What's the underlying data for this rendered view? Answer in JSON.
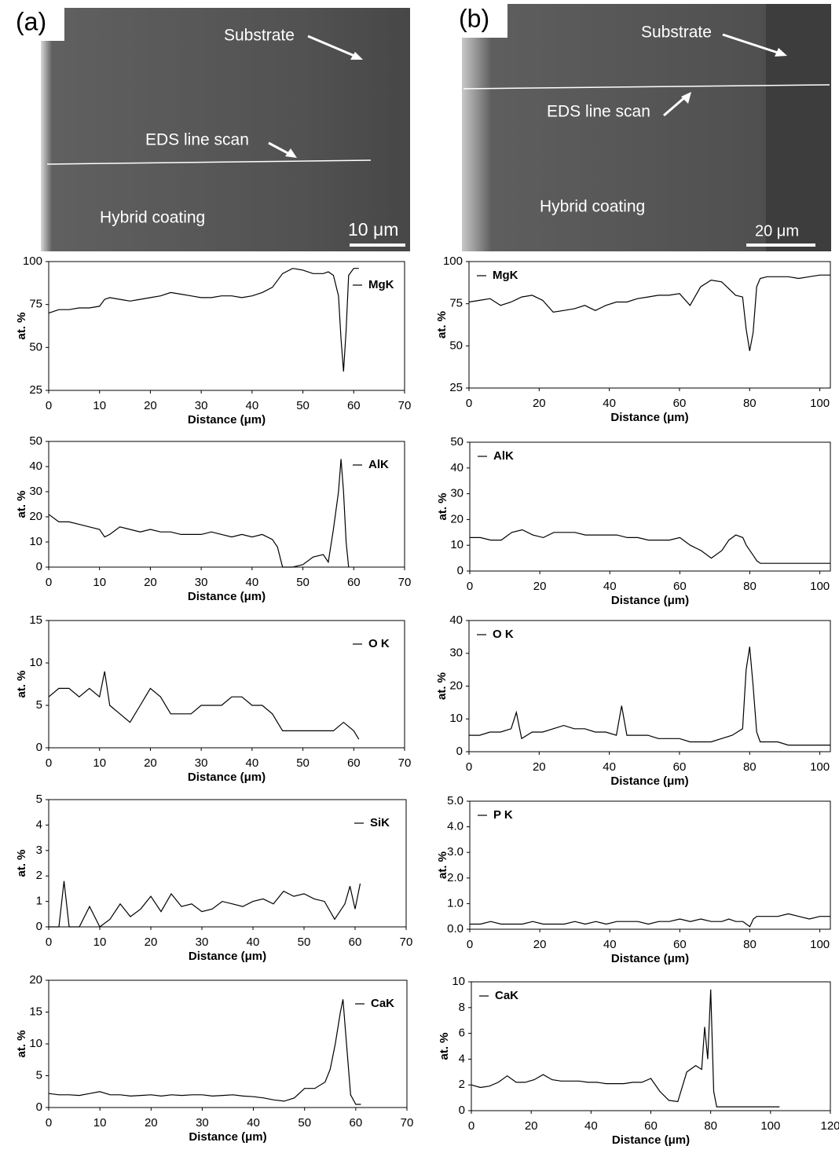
{
  "panels": [
    {
      "label": "(a)",
      "substrate": "Substrate",
      "line_scan": "EDS line scan",
      "coating": "Hybrid coating",
      "scale": "10 μm"
    },
    {
      "label": "(b)",
      "substrate": "Substrate",
      "line_scan": "EDS line scan",
      "coating": "Hybrid coating",
      "scale": "20 μm"
    }
  ],
  "chart_data": [
    {
      "type": "line",
      "xlabel": "Distance (μm)",
      "ylabel": "at. %",
      "legend": "upper right",
      "xlim": [
        0,
        70
      ],
      "xticks": [
        0,
        10,
        20,
        30,
        40,
        50,
        60,
        70
      ],
      "ylim": [
        25,
        100
      ],
      "yticks": [
        25,
        50,
        75,
        100
      ],
      "x": [
        0,
        2,
        4,
        6,
        8,
        10,
        11,
        12,
        14,
        16,
        18,
        20,
        22,
        24,
        26,
        28,
        30,
        32,
        34,
        36,
        38,
        40,
        42,
        44,
        46,
        48,
        50,
        52,
        54,
        55,
        56,
        57,
        57.5,
        58,
        58.5,
        59,
        60,
        61
      ],
      "series": [
        {
          "name": "MgK",
          "color": "#000000",
          "values": [
            70,
            72,
            72,
            73,
            73,
            74,
            78,
            79,
            78,
            77,
            78,
            79,
            80,
            82,
            81,
            80,
            79,
            79,
            80,
            80,
            79,
            80,
            82,
            85,
            93,
            96,
            95,
            93,
            93,
            94,
            92,
            80,
            55,
            36,
            60,
            92,
            96,
            96
          ]
        }
      ]
    },
    {
      "type": "line",
      "xlabel": "Distance (μm)",
      "ylabel": "at. %",
      "legend": "upper left",
      "xlim": [
        0,
        103
      ],
      "xticks": [
        0,
        20,
        40,
        60,
        80,
        100
      ],
      "ylim": [
        25,
        100
      ],
      "yticks": [
        25,
        50,
        75,
        100
      ],
      "x": [
        0,
        3,
        6,
        9,
        12,
        15,
        18,
        21,
        24,
        27,
        30,
        33,
        36,
        39,
        42,
        45,
        48,
        51,
        54,
        57,
        60,
        63,
        66,
        69,
        72,
        74,
        76,
        78,
        79,
        80,
        81,
        82,
        83,
        85,
        88,
        91,
        94,
        97,
        100,
        103
      ],
      "series": [
        {
          "name": "MgK",
          "color": "#000000",
          "values": [
            76,
            77,
            78,
            74,
            76,
            79,
            80,
            77,
            70,
            71,
            72,
            74,
            71,
            74,
            76,
            76,
            78,
            79,
            80,
            80,
            81,
            74,
            85,
            89,
            88,
            84,
            80,
            79,
            60,
            47,
            58,
            85,
            90,
            91,
            91,
            91,
            90,
            91,
            92,
            92
          ]
        }
      ]
    },
    {
      "type": "line",
      "xlabel": "Distance (μm)",
      "ylabel": "at. %",
      "legend": "upper right",
      "xlim": [
        0,
        70
      ],
      "xticks": [
        0,
        10,
        20,
        30,
        40,
        50,
        60,
        70
      ],
      "ylim": [
        0,
        50
      ],
      "yticks": [
        0,
        10,
        20,
        30,
        40,
        50
      ],
      "x": [
        0,
        2,
        4,
        6,
        8,
        10,
        11,
        12,
        14,
        16,
        18,
        20,
        22,
        24,
        26,
        28,
        30,
        32,
        34,
        36,
        38,
        40,
        42,
        44,
        45,
        46,
        48,
        50,
        52,
        54,
        55,
        56,
        57,
        57.5,
        58,
        58.5,
        59
      ],
      "series": [
        {
          "name": "AlK",
          "color": "#000000",
          "values": [
            21,
            18,
            18,
            17,
            16,
            15,
            12,
            13,
            16,
            15,
            14,
            15,
            14,
            14,
            13,
            13,
            13,
            14,
            13,
            12,
            13,
            12,
            13,
            11,
            8,
            0,
            0,
            1,
            4,
            5,
            2,
            15,
            30,
            43,
            30,
            10,
            0
          ]
        }
      ]
    },
    {
      "type": "line",
      "xlabel": "Distance (μm)",
      "ylabel": "at. %",
      "legend": "upper left",
      "xlim": [
        0,
        103
      ],
      "xticks": [
        0,
        20,
        40,
        60,
        80,
        100
      ],
      "ylim": [
        0,
        50
      ],
      "yticks": [
        0,
        10,
        20,
        30,
        40,
        50
      ],
      "x": [
        0,
        3,
        6,
        9,
        12,
        15,
        18,
        21,
        24,
        27,
        30,
        33,
        36,
        39,
        42,
        45,
        48,
        51,
        54,
        57,
        60,
        63,
        66,
        69,
        72,
        74,
        76,
        78,
        79,
        80,
        81,
        82,
        83,
        85,
        88,
        91,
        94,
        97,
        100,
        103
      ],
      "series": [
        {
          "name": "AlK",
          "color": "#000000",
          "values": [
            13,
            13,
            12,
            12,
            15,
            16,
            14,
            13,
            15,
            15,
            15,
            14,
            14,
            14,
            14,
            13,
            13,
            12,
            12,
            12,
            13,
            10,
            8,
            5,
            8,
            12,
            14,
            13,
            10,
            8,
            6,
            4,
            3,
            3,
            3,
            3,
            3,
            3,
            3,
            3
          ]
        }
      ]
    },
    {
      "type": "line",
      "xlabel": "Distance (μm)",
      "ylabel": "at. %",
      "legend": "upper right",
      "xlim": [
        0,
        70
      ],
      "xticks": [
        0,
        10,
        20,
        30,
        40,
        50,
        60,
        70
      ],
      "ylim": [
        0,
        15
      ],
      "yticks": [
        0,
        5,
        10,
        15
      ],
      "x": [
        0,
        2,
        4,
        6,
        8,
        10,
        11,
        12,
        14,
        16,
        18,
        20,
        22,
        24,
        26,
        28,
        30,
        32,
        34,
        36,
        38,
        40,
        42,
        44,
        46,
        48,
        50,
        52,
        54,
        56,
        58,
        60,
        61
      ],
      "series": [
        {
          "name": "O K",
          "color": "#000000",
          "values": [
            6,
            7,
            7,
            6,
            7,
            6,
            9,
            5,
            4,
            3,
            5,
            7,
            6,
            4,
            4,
            4,
            5,
            5,
            5,
            6,
            6,
            5,
            5,
            4,
            2,
            2,
            2,
            2,
            2,
            2,
            3,
            2,
            1
          ]
        }
      ]
    },
    {
      "type": "line",
      "xlabel": "Distance (μm)",
      "ylabel": "at. %",
      "legend": "upper left",
      "xlim": [
        0,
        103
      ],
      "xticks": [
        0,
        20,
        40,
        60,
        80,
        100
      ],
      "ylim": [
        0,
        40
      ],
      "yticks": [
        0,
        10,
        20,
        30,
        40
      ],
      "x": [
        0,
        3,
        6,
        9,
        12,
        13.5,
        15,
        18,
        21,
        24,
        27,
        30,
        33,
        36,
        39,
        42,
        43.5,
        45,
        48,
        51,
        54,
        57,
        60,
        63,
        66,
        69,
        72,
        75,
        78,
        79,
        80,
        81,
        82,
        83,
        85,
        88,
        91,
        94,
        97,
        100,
        103
      ],
      "series": [
        {
          "name": "O K",
          "color": "#000000",
          "values": [
            5,
            5,
            6,
            6,
            7,
            12,
            4,
            6,
            6,
            7,
            8,
            7,
            7,
            6,
            6,
            5,
            14,
            5,
            5,
            5,
            4,
            4,
            4,
            3,
            3,
            3,
            4,
            5,
            7,
            25,
            32,
            20,
            6,
            3,
            3,
            3,
            2,
            2,
            2,
            2,
            2
          ]
        }
      ]
    },
    {
      "type": "line",
      "xlabel": "Distance (μm)",
      "ylabel": "at. %",
      "legend": "upper right",
      "xlim": [
        0,
        70
      ],
      "xticks": [
        0,
        10,
        20,
        30,
        40,
        50,
        60,
        70
      ],
      "ylim": [
        0,
        5
      ],
      "yticks": [
        0,
        1,
        2,
        3,
        4,
        5
      ],
      "x": [
        0,
        2,
        3,
        4,
        6,
        8,
        10,
        12,
        14,
        16,
        18,
        20,
        22,
        24,
        26,
        28,
        30,
        32,
        34,
        36,
        38,
        40,
        42,
        44,
        46,
        48,
        50,
        52,
        54,
        56,
        58,
        59,
        60,
        61
      ],
      "series": [
        {
          "name": "SiK",
          "color": "#000000",
          "values": [
            0,
            0,
            1.8,
            0,
            0,
            0.8,
            0,
            0.3,
            0.9,
            0.4,
            0.7,
            1.2,
            0.6,
            1.3,
            0.8,
            0.9,
            0.6,
            0.7,
            1.0,
            0.9,
            0.8,
            1.0,
            1.1,
            0.9,
            1.4,
            1.2,
            1.3,
            1.1,
            1.0,
            0.3,
            0.9,
            1.6,
            0.7,
            1.7
          ]
        }
      ]
    },
    {
      "type": "line",
      "xlabel": "Distance (μm)",
      "ylabel": "at. %",
      "legend": "upper left",
      "xlim": [
        0,
        103
      ],
      "xticks": [
        0,
        20,
        40,
        60,
        80,
        100
      ],
      "ylim": [
        0,
        5
      ],
      "yticks": [
        {
          "value": 0,
          "label": "0.0"
        },
        {
          "value": 1,
          "label": "1.0"
        },
        {
          "value": 2,
          "label": "2.0"
        },
        {
          "value": 3,
          "label": "3.0"
        },
        {
          "value": 4,
          "label": "4.0"
        },
        {
          "value": 5,
          "label": "5.0"
        }
      ],
      "x": [
        0,
        3,
        6,
        9,
        12,
        15,
        18,
        21,
        24,
        27,
        30,
        33,
        36,
        39,
        42,
        45,
        48,
        51,
        54,
        57,
        60,
        63,
        66,
        69,
        72,
        74,
        76,
        78,
        79,
        80,
        81,
        82,
        83,
        85,
        88,
        91,
        94,
        97,
        100,
        103
      ],
      "series": [
        {
          "name": "P K",
          "color": "#000000",
          "values": [
            0.2,
            0.2,
            0.3,
            0.2,
            0.2,
            0.2,
            0.3,
            0.2,
            0.2,
            0.2,
            0.3,
            0.2,
            0.3,
            0.2,
            0.3,
            0.3,
            0.3,
            0.2,
            0.3,
            0.3,
            0.4,
            0.3,
            0.4,
            0.3,
            0.3,
            0.4,
            0.3,
            0.3,
            0.2,
            0.1,
            0.4,
            0.5,
            0.5,
            0.5,
            0.5,
            0.6,
            0.5,
            0.4,
            0.5,
            0.5
          ]
        }
      ]
    },
    {
      "type": "line",
      "xlabel": "Distance (μm)",
      "ylabel": "at. %",
      "legend": "upper right",
      "xlim": [
        0,
        70
      ],
      "xticks": [
        0,
        10,
        20,
        30,
        40,
        50,
        60,
        70
      ],
      "ylim": [
        0,
        20
      ],
      "yticks": [
        0,
        5,
        10,
        15,
        20
      ],
      "x": [
        0,
        2,
        4,
        6,
        8,
        10,
        12,
        14,
        16,
        18,
        20,
        22,
        24,
        26,
        28,
        30,
        32,
        34,
        36,
        38,
        40,
        42,
        44,
        46,
        48,
        50,
        52,
        54,
        55,
        56,
        57,
        57.5,
        58,
        59,
        60,
        61
      ],
      "series": [
        {
          "name": "CaK",
          "color": "#000000",
          "values": [
            2.2,
            2,
            2,
            1.9,
            2.2,
            2.5,
            2,
            2,
            1.8,
            1.9,
            2,
            1.8,
            2,
            1.9,
            2,
            2,
            1.8,
            1.9,
            2,
            1.8,
            1.7,
            1.5,
            1.2,
            1,
            1.5,
            3,
            3,
            4,
            6,
            10,
            15,
            17,
            12,
            2,
            0.5,
            0.5
          ]
        }
      ]
    },
    {
      "type": "line",
      "xlabel": "Distance (μm)",
      "ylabel": "at. %",
      "legend": "upper left",
      "xlim": [
        0,
        120
      ],
      "xticks": [
        0,
        20,
        40,
        60,
        80,
        100,
        120
      ],
      "ylim": [
        0,
        10
      ],
      "yticks": [
        0,
        2,
        4,
        6,
        8,
        10
      ],
      "x": [
        0,
        3,
        6,
        9,
        12,
        15,
        18,
        21,
        24,
        27,
        30,
        33,
        36,
        39,
        42,
        45,
        48,
        51,
        54,
        57,
        60,
        63,
        66,
        69,
        72,
        75,
        77,
        78,
        79,
        80,
        81,
        82,
        85,
        88,
        91,
        94,
        97,
        100,
        103
      ],
      "series": [
        {
          "name": "CaK",
          "color": "#000000",
          "values": [
            2,
            1.8,
            1.9,
            2.2,
            2.7,
            2.2,
            2.2,
            2.4,
            2.8,
            2.4,
            2.3,
            2.3,
            2.3,
            2.2,
            2.2,
            2.1,
            2.1,
            2.1,
            2.2,
            2.2,
            2.5,
            1.5,
            0.8,
            0.7,
            3,
            3.5,
            3.2,
            6.5,
            4,
            9.4,
            1.5,
            0.3,
            0.3,
            0.3,
            0.3,
            0.3,
            0.3,
            0.3,
            0.3
          ]
        }
      ]
    }
  ]
}
